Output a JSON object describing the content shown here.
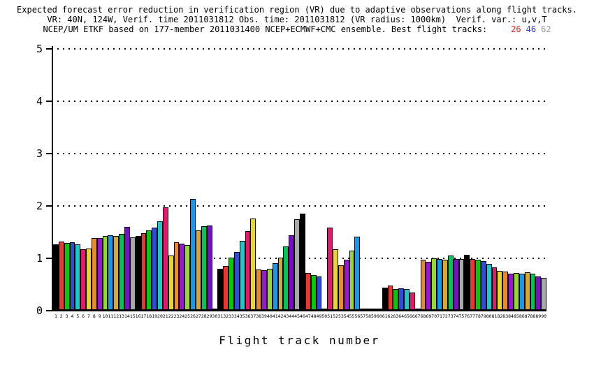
{
  "title": {
    "line1": "Expected forecast error reduction in verification region (VR) due to adaptive observations along flight tracks.",
    "line2": "VR: 40N, 124W, Verif. time 2011031812 Obs. time: 2011031812 (VR radius: 1000km)  Verif. var.: u,v,T",
    "line3_prefix": "NCEP/UM ETKF based on 177-member 2011031400 NCEP+ECMWF+CMC ensemble. Best flight tracks:",
    "best_tracks": [
      {
        "label": "26",
        "color": "#e8251c"
      },
      {
        "label": "46",
        "color": "#2737e8"
      },
      {
        "label": "62",
        "color": "#9a9a9a"
      }
    ]
  },
  "chart_data": {
    "type": "bar",
    "title": "Expected forecast error reduction in verification region (VR) due to adaptive observations along flight tracks.",
    "xlabel": "Flight track number",
    "ylabel": "",
    "ylim": [
      0,
      5
    ],
    "yticks": [
      0,
      1,
      2,
      3,
      4,
      5
    ],
    "grid": "horizontal dotted lines at y=1..5",
    "legend": "none",
    "x": [
      1,
      2,
      3,
      4,
      5,
      6,
      7,
      8,
      9,
      10,
      11,
      12,
      13,
      14,
      15,
      16,
      17,
      18,
      19,
      20,
      21,
      22,
      23,
      24,
      25,
      26,
      27,
      28,
      29,
      30,
      31,
      32,
      33,
      34,
      35,
      36,
      37,
      38,
      39,
      40,
      41,
      42,
      43,
      44,
      45,
      46,
      47,
      48,
      49,
      50,
      51,
      52,
      53,
      54,
      55,
      56,
      57,
      58,
      59,
      60,
      61,
      62,
      63,
      64,
      65,
      66,
      67,
      68,
      69,
      70,
      71,
      72,
      73,
      74,
      75,
      76,
      77,
      78,
      79,
      80,
      81,
      82,
      83,
      84,
      85,
      86,
      87,
      88,
      89,
      90
    ],
    "values": [
      1.26,
      1.31,
      1.28,
      1.3,
      1.26,
      1.16,
      1.18,
      1.37,
      1.38,
      1.41,
      1.43,
      1.42,
      1.46,
      1.59,
      1.39,
      1.42,
      1.47,
      1.52,
      1.58,
      1.7,
      1.96,
      1.04,
      1.3,
      1.27,
      1.24,
      2.12,
      1.52,
      1.6,
      1.62,
      0.02,
      0.79,
      0.84,
      1.0,
      1.11,
      1.32,
      1.51,
      1.75,
      0.77,
      0.76,
      0.79,
      0.9,
      1.0,
      1.21,
      1.43,
      1.74,
      1.84,
      0.71,
      0.67,
      0.64,
      0.02,
      1.58,
      1.16,
      0.85,
      0.96,
      1.13,
      1.4,
      0.03,
      0.03,
      0.03,
      0.03,
      0.43,
      0.47,
      0.4,
      0.41,
      0.4,
      0.33,
      0.03,
      0.96,
      0.92,
      0.99,
      0.97,
      0.96,
      1.04,
      0.97,
      0.97,
      1.06,
      0.98,
      0.96,
      0.93,
      0.88,
      0.81,
      0.75,
      0.73,
      0.69,
      0.71,
      0.7,
      0.72,
      0.69,
      0.64,
      0.61
    ],
    "bar_color_cycle": [
      "#000000",
      "#ee352f",
      "#00cc00",
      "#2a4de0",
      "#1fc8c8",
      "#e8176e",
      "#e6d62e",
      "#ec8b26",
      "#9c14d4",
      "#94d832",
      "#149ae8",
      "#d8a830",
      "#00c455",
      "#7a0ccc",
      "#a8a8a8"
    ],
    "bar_color_rule": "color = cycle[(track-1) mod 15]"
  },
  "axis": {
    "ytick_labels": [
      "0",
      "1",
      "2",
      "3",
      "4",
      "5"
    ],
    "xtick_labels_range": "1 to 90, one tiny label under each bar"
  }
}
